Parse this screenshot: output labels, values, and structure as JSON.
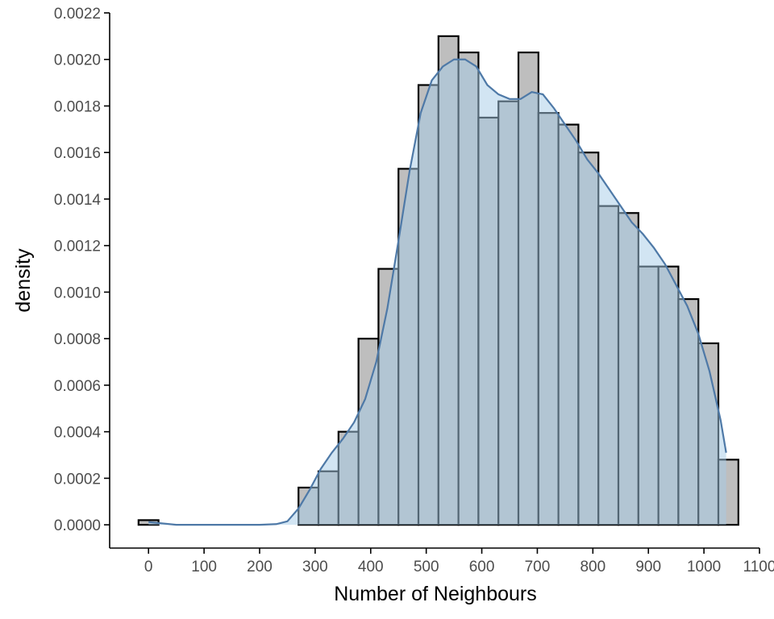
{
  "chart_data": {
    "type": "bar",
    "subtype": "histogram-with-density",
    "title": "",
    "xlabel": "Number of Neighbours",
    "ylabel": "density",
    "xlim": [
      -70,
      1100
    ],
    "ylim": [
      -0.0001,
      0.0022
    ],
    "x_ticks": [
      0,
      100,
      200,
      300,
      400,
      500,
      600,
      700,
      800,
      900,
      1000,
      1100
    ],
    "y_ticks": [
      0.0,
      0.0002,
      0.0004,
      0.0006,
      0.0008,
      0.001,
      0.0012,
      0.0014,
      0.0016,
      0.0018,
      0.002,
      0.0022
    ],
    "y_tick_labels": [
      "0.0000",
      "0.0002",
      "0.0004",
      "0.0006",
      "0.0008",
      "0.0010",
      "0.0012",
      "0.0014",
      "0.0016",
      "0.0018",
      "0.0020",
      "0.0022"
    ],
    "x_tick_labels": [
      "0",
      "100",
      "200",
      "300",
      "400",
      "500",
      "600",
      "700",
      "800",
      "900",
      "1000",
      "1100"
    ],
    "grid": false,
    "histogram": {
      "bin_width": 36,
      "bin_centers": [
        0,
        288,
        324,
        360,
        396,
        432,
        468,
        504,
        540,
        576,
        612,
        648,
        684,
        720,
        756,
        792,
        828,
        864,
        900,
        936,
        972,
        1008,
        1044
      ],
      "values": [
        2e-05,
        0.00016,
        0.00023,
        0.0004,
        0.0008,
        0.0011,
        0.00153,
        0.00189,
        0.0021,
        0.00203,
        0.00175,
        0.00182,
        0.00203,
        0.00177,
        0.00172,
        0.0016,
        0.00137,
        0.00134,
        0.00111,
        0.00111,
        0.00097,
        0.00078,
        0.00028
      ],
      "fill": "#bebebe",
      "stroke": "#000000"
    },
    "density": {
      "x": [
        0,
        50,
        100,
        150,
        200,
        230,
        250,
        270,
        290,
        310,
        330,
        350,
        370,
        390,
        410,
        430,
        450,
        470,
        490,
        510,
        530,
        550,
        570,
        590,
        610,
        630,
        650,
        670,
        690,
        710,
        730,
        750,
        770,
        790,
        810,
        830,
        850,
        870,
        890,
        910,
        930,
        950,
        970,
        990,
        1010,
        1030,
        1040
      ],
      "y": [
        1.2e-05,
        0.0,
        0.0,
        0.0,
        0.0,
        3e-06,
        1.5e-05,
        7e-05,
        0.00015,
        0.00024,
        0.00031,
        0.00037,
        0.00044,
        0.00054,
        0.0007,
        0.00093,
        0.00122,
        0.00152,
        0.00177,
        0.00191,
        0.00197,
        0.002,
        0.002,
        0.00197,
        0.00189,
        0.00185,
        0.00183,
        0.00183,
        0.00186,
        0.00185,
        0.00179,
        0.00172,
        0.00165,
        0.00157,
        0.00151,
        0.00144,
        0.00137,
        0.0013,
        0.00125,
        0.00119,
        0.00112,
        0.00103,
        0.00094,
        0.00082,
        0.00066,
        0.00045,
        0.00031
      ],
      "fill": "#a6cbe8",
      "fill_opacity": 0.5,
      "stroke": "#4e79a7"
    }
  }
}
